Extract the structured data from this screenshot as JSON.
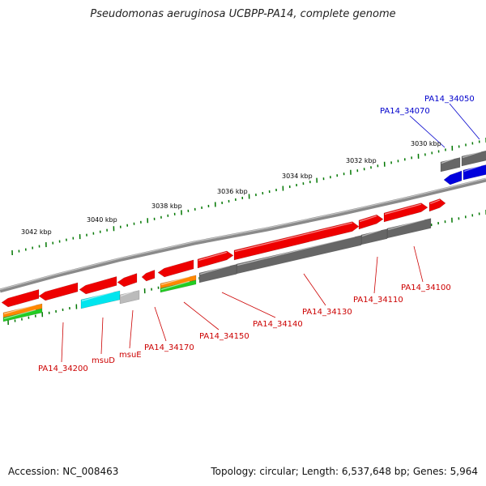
{
  "title": "Pseudomonas aeruginosa UCBPP-PA14, complete genome",
  "footer": {
    "accession": "Accession: NC_008463",
    "topology": "Topology: circular; Length: 6,537,648 bp; Genes: 5,964"
  },
  "colors": {
    "backbone": "#8a8a8a",
    "tick": "#007700",
    "red_gene": "#ee0000",
    "blue_gene": "#0000dd",
    "gray_gene": "#666666",
    "cyan_gene": "#00e5ee",
    "lightgray_gene": "#bbbbbb",
    "orange_gene": "#ff8800",
    "green_gene": "#22cc22",
    "red_label": "#cc0000",
    "blue_label": "#0000cc"
  },
  "tick_labels": [
    "3030 kbp",
    "3032 kbp",
    "3034 kbp",
    "3036 kbp",
    "3038 kbp",
    "3040 kbp",
    "3042 kbp"
  ],
  "gene_labels": [
    {
      "text": "PA14_34050",
      "color": "blue"
    },
    {
      "text": "PA14_34070",
      "color": "blue"
    },
    {
      "text": "PA14_34100",
      "color": "red"
    },
    {
      "text": "PA14_34110",
      "color": "red"
    },
    {
      "text": "PA14_34130",
      "color": "red"
    },
    {
      "text": "PA14_34140",
      "color": "red"
    },
    {
      "text": "PA14_34150",
      "color": "red"
    },
    {
      "text": "PA14_34170",
      "color": "red"
    },
    {
      "text": "msuE",
      "color": "red"
    },
    {
      "text": "msuD",
      "color": "red"
    },
    {
      "text": "PA14_34200",
      "color": "red"
    }
  ]
}
